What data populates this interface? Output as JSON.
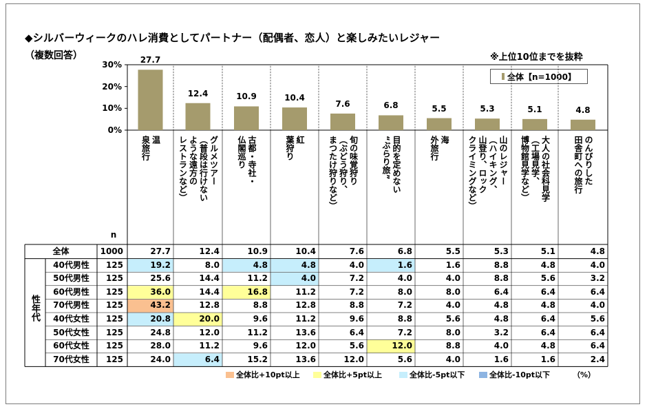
{
  "title": "◆シルバーウィークのハレ消費としてパートナー（配偶者、恋人）と楽しみたいレジャー",
  "subtitle": "（複数回答）",
  "note": "※上位10位までを抜粋",
  "legend_label": "全体【n=1000】",
  "n_header": "n",
  "percent_unit": "（%）",
  "side_label": "性年代",
  "colors": {
    "bar": "#a59b6d",
    "orange": "#fac090",
    "yellow": "#ffff99",
    "light_blue": "#c6eefc",
    "blue": "#8db4e2"
  },
  "highlight_key": [
    {
      "label": "全体比+10pt以上",
      "color": "#fac090"
    },
    {
      "label": "全体比+5pt以上",
      "color": "#ffff99"
    },
    {
      "label": "全体比-5pt以下",
      "color": "#c6eefc"
    },
    {
      "label": "全体比-10pt以下",
      "color": "#8db4e2"
    }
  ],
  "chart_data": {
    "type": "bar",
    "title": "◆シルバーウィークのハレ消費としてパートナー（配偶者、恋人）と楽しみたいレジャー",
    "categories": [
      "温泉旅行",
      "グルメツアー（普段は行けないような遠方のレストランなど）",
      "古都・寺社・仏閣巡り",
      "紅葉狩り",
      "旬の味覚狩り（ぶどう狩り、まつたけ狩りなど）",
      "目的を定めない“ぶらり旅”",
      "海外旅行",
      "山のレジャー（ハイキング、山登り、ロッククライミングなど）",
      "大人の社会科見学（工場見学、博物館見学など）",
      "田舎町へののんびりした旅行"
    ],
    "category_lines": [
      [
        "温",
        "泉旅行"
      ],
      [
        "グルメツアー",
        "（普段は行けない",
        "ような遠方の",
        "レストランなど）"
      ],
      [
        "古都・寺社・",
        "仏閣巡り"
      ],
      [
        "紅",
        "葉狩り"
      ],
      [
        "旬の味覚狩り",
        "（ぶどう狩り、",
        "まつたけ狩りなど）"
      ],
      [
        "目的を定めない",
        "“ぶらり旅”"
      ],
      [
        "海",
        "外旅行"
      ],
      [
        "山のレジャー",
        "（ハイキング、",
        "山登り、ロック",
        "クライミングなど）"
      ],
      [
        "大人の社会科見学",
        "（工場見学、",
        "博物館見学など）"
      ],
      [
        "のんびりした",
        "田舎町への旅行"
      ]
    ],
    "series": [
      {
        "name": "全体【n=1000】",
        "values": [
          27.7,
          12.4,
          10.9,
          10.4,
          7.6,
          6.8,
          5.5,
          5.3,
          5.1,
          4.8
        ]
      }
    ],
    "value_labels": [
      "27.7",
      "12.4",
      "10.9",
      "10.4",
      "7.6",
      "6.8",
      "5.5",
      "5.3",
      "5.1",
      "4.8"
    ],
    "yticks": [
      "0%",
      "10%",
      "20%",
      "30%"
    ],
    "ylim": [
      0,
      30
    ],
    "legend_position": "top-right",
    "table": {
      "rows": [
        {
          "label": "全体",
          "n": "1000",
          "values": [
            "27.7",
            "12.4",
            "10.9",
            "10.4",
            "7.6",
            "6.8",
            "5.5",
            "5.3",
            "5.1",
            "4.8"
          ],
          "hl": [
            "",
            "",
            "",
            "",
            "",
            "",
            "",
            "",
            "",
            ""
          ]
        },
        {
          "label": "40代男性",
          "n": "125",
          "values": [
            "19.2",
            "8.0",
            "4.8",
            "4.8",
            "4.0",
            "1.6",
            "1.6",
            "8.8",
            "4.8",
            "4.0"
          ],
          "hl": [
            "lightblue",
            "",
            "lightblue",
            "lightblue",
            "",
            "lightblue",
            "",
            "",
            "",
            ""
          ]
        },
        {
          "label": "50代男性",
          "n": "125",
          "values": [
            "25.6",
            "14.4",
            "11.2",
            "4.0",
            "7.2",
            "4.0",
            "4.0",
            "8.8",
            "5.6",
            "3.2"
          ],
          "hl": [
            "",
            "",
            "",
            "lightblue",
            "",
            "",
            "",
            "",
            "",
            ""
          ]
        },
        {
          "label": "60代男性",
          "n": "125",
          "values": [
            "36.0",
            "14.4",
            "16.8",
            "11.2",
            "7.2",
            "8.0",
            "8.0",
            "6.4",
            "6.4",
            "6.4"
          ],
          "hl": [
            "yellow",
            "",
            "yellow",
            "",
            "",
            "",
            "",
            "",
            "",
            ""
          ]
        },
        {
          "label": "70代男性",
          "n": "125",
          "values": [
            "43.2",
            "12.8",
            "8.8",
            "12.8",
            "8.8",
            "7.2",
            "4.0",
            "4.8",
            "4.8",
            "4.0"
          ],
          "hl": [
            "orange",
            "",
            "",
            "",
            "",
            "",
            "",
            "",
            "",
            ""
          ]
        },
        {
          "label": "40代女性",
          "n": "125",
          "values": [
            "20.8",
            "20.0",
            "9.6",
            "11.2",
            "9.6",
            "8.8",
            "5.6",
            "4.8",
            "6.4",
            "5.6"
          ],
          "hl": [
            "lightblue",
            "yellow",
            "",
            "",
            "",
            "",
            "",
            "",
            "",
            ""
          ]
        },
        {
          "label": "50代女性",
          "n": "125",
          "values": [
            "24.8",
            "12.0",
            "11.2",
            "13.6",
            "6.4",
            "7.2",
            "8.0",
            "3.2",
            "6.4",
            "6.4"
          ],
          "hl": [
            "",
            "",
            "",
            "",
            "",
            "",
            "",
            "",
            "",
            ""
          ]
        },
        {
          "label": "60代女性",
          "n": "125",
          "values": [
            "28.0",
            "11.2",
            "9.6",
            "12.0",
            "5.6",
            "12.0",
            "8.8",
            "4.0",
            "4.8",
            "6.4"
          ],
          "hl": [
            "",
            "",
            "",
            "",
            "",
            "yellow",
            "",
            "",
            "",
            ""
          ]
        },
        {
          "label": "70代女性",
          "n": "125",
          "values": [
            "24.0",
            "6.4",
            "15.2",
            "13.6",
            "12.0",
            "5.6",
            "4.0",
            "1.6",
            "1.6",
            "2.4"
          ],
          "hl": [
            "",
            "lightblue",
            "",
            "",
            "",
            "",
            "",
            "",
            "",
            ""
          ]
        }
      ]
    }
  }
}
